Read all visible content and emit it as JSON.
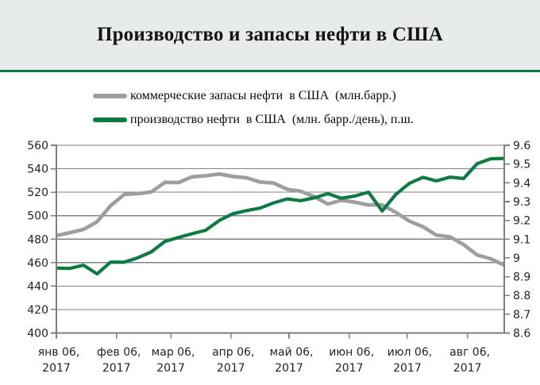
{
  "header": {
    "title": "Производство и запасы нефти в США"
  },
  "legend": {
    "position": "top-left",
    "items": [
      {
        "id": "stocks",
        "label": "коммерческие запасы нефти  в США  (млн.барр.)",
        "color": "#9e9e9e"
      },
      {
        "id": "production",
        "label": "производство нефти  в США  (млн. барр./день), п.ш.",
        "color": "#0d7a43"
      }
    ]
  },
  "colors": {
    "grid": "#828282",
    "axis": "#7f7f7f",
    "tick_text": "#20242e",
    "header_bg": "#e8ebec",
    "rule_green": "#0d7a43"
  },
  "chart_data": {
    "type": "line",
    "title": "Производство и запасы нефти в США",
    "grid": "horizontal",
    "x_dates": [
      "2017-01-06",
      "2017-01-13",
      "2017-01-20",
      "2017-01-27",
      "2017-02-03",
      "2017-02-10",
      "2017-02-17",
      "2017-02-24",
      "2017-03-03",
      "2017-03-10",
      "2017-03-17",
      "2017-03-24",
      "2017-03-31",
      "2017-04-07",
      "2017-04-14",
      "2017-04-21",
      "2017-04-28",
      "2017-05-05",
      "2017-05-12",
      "2017-05-19",
      "2017-05-26",
      "2017-06-02",
      "2017-06-09",
      "2017-06-16",
      "2017-06-23",
      "2017-06-30",
      "2017-07-07",
      "2017-07-14",
      "2017-07-21",
      "2017-07-28",
      "2017-08-04",
      "2017-08-11",
      "2017-08-18",
      "2017-08-25"
    ],
    "series": [
      {
        "id": "stocks",
        "name": "коммерческие запасы нефти в США (млн.барр.)",
        "axis": "left",
        "color": "#9e9e9e",
        "values": [
          483.1,
          485.5,
          488.3,
          494.8,
          508.6,
          518.1,
          518.7,
          520.2,
          528.4,
          528.2,
          533.1,
          534.0,
          535.5,
          533.4,
          532.3,
          528.7,
          527.8,
          522.5,
          520.8,
          516.3,
          509.9,
          513.2,
          511.5,
          509.1,
          509.2,
          502.9,
          495.4,
          490.6,
          483.4,
          481.9,
          475.4,
          466.5,
          463.2,
          457.8
        ]
      },
      {
        "id": "production",
        "name": "производство нефти в США (млн. барр./день), п.ш.",
        "axis": "right",
        "color": "#0d7a43",
        "values": [
          8.946,
          8.944,
          8.961,
          8.915,
          8.978,
          8.977,
          9.001,
          9.032,
          9.088,
          9.109,
          9.129,
          9.147,
          9.199,
          9.235,
          9.252,
          9.265,
          9.293,
          9.314,
          9.305,
          9.32,
          9.342,
          9.318,
          9.33,
          9.35,
          9.25,
          9.338,
          9.397,
          9.429,
          9.41,
          9.43,
          9.423,
          9.502,
          9.528,
          9.53
        ]
      }
    ],
    "left_axis": {
      "min": 400,
      "max": 560,
      "step": 20,
      "tick_values": [
        560,
        540,
        520,
        500,
        480,
        460,
        440,
        420,
        400
      ],
      "tick_labels": [
        "560",
        "540",
        "520",
        "500",
        "480",
        "460",
        "440",
        "420",
        "400"
      ]
    },
    "right_axis": {
      "min": 8.6,
      "max": 9.6,
      "step": 0.1,
      "tick_values": [
        9.6,
        9.5,
        9.4,
        9.3,
        9.2,
        9.1,
        9.0,
        8.9,
        8.8,
        8.7,
        8.6
      ],
      "tick_labels": [
        "9.6",
        "9.5",
        "9.4",
        "9.3",
        "9.2",
        "9.1",
        "9",
        "8.9",
        "8.8",
        "8.7",
        "8.6"
      ]
    },
    "x_axis": {
      "ticks": [
        {
          "date": "2017-01-06",
          "line1": "янв 06,",
          "line2": "2017"
        },
        {
          "date": "2017-02-06",
          "line1": "фев 06,",
          "line2": "2017"
        },
        {
          "date": "2017-03-06",
          "line1": "мар 06,",
          "line2": "2017"
        },
        {
          "date": "2017-04-06",
          "line1": "апр 06,",
          "line2": "2017"
        },
        {
          "date": "2017-05-06",
          "line1": "май 06,",
          "line2": "2017"
        },
        {
          "date": "2017-06-06",
          "line1": "июн 06,",
          "line2": "2017"
        },
        {
          "date": "2017-07-06",
          "line1": "июл 06,",
          "line2": "2017"
        },
        {
          "date": "2017-08-06",
          "line1": "авг 06,",
          "line2": "2017"
        }
      ]
    }
  }
}
